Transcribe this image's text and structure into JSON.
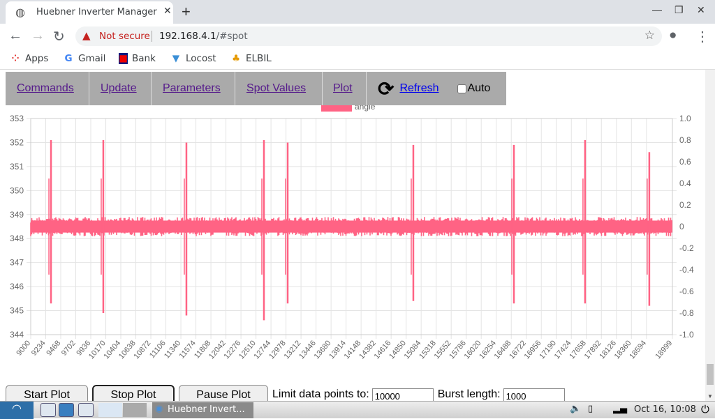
{
  "browser": {
    "tab_title": "Huebner Inverter Manager",
    "new_tab": "+",
    "security": "Not secure",
    "url_host": "192.168.4.1",
    "url_path": "/#spot",
    "bookmarks": [
      {
        "label": "Apps",
        "icon": "apps-grid-icon"
      },
      {
        "label": "Gmail",
        "icon": "google-icon"
      },
      {
        "label": "Bank",
        "icon": "bank-icon"
      },
      {
        "label": "Locost",
        "icon": "locost-icon"
      },
      {
        "label": "ELBIL",
        "icon": "elbil-icon"
      }
    ]
  },
  "menu": {
    "items": [
      "Commands",
      "Update",
      "Parameters",
      "Spot Values",
      "Plot"
    ],
    "refresh": "Refresh",
    "auto": "Auto",
    "auto_checked": false
  },
  "chart_data": {
    "type": "line",
    "legend": [
      {
        "name": "angle",
        "color": "#ff6384"
      }
    ],
    "legend_position": "top",
    "ylim_left": [
      344,
      353
    ],
    "yticks_left": [
      344,
      345,
      346,
      347,
      348,
      349,
      350,
      351,
      352,
      353
    ],
    "ylim_right": [
      -1.0,
      1.0
    ],
    "yticks_right": [
      "-1.0",
      "-0.8",
      "-0.6",
      "-0.4",
      "-0.2",
      "0",
      "0.2",
      "0.4",
      "0.6",
      "0.8",
      "1.0"
    ],
    "xlim": [
      9000,
      18999
    ],
    "xticks": [
      "9000",
      "9234",
      "9468",
      "9702",
      "9936",
      "10170",
      "10404",
      "10638",
      "10872",
      "11106",
      "11340",
      "11574",
      "11808",
      "12042",
      "12276",
      "12510",
      "12744",
      "12978",
      "13212",
      "13446",
      "13680",
      "13914",
      "14148",
      "14382",
      "14616",
      "14850",
      "15084",
      "15318",
      "15552",
      "15786",
      "16020",
      "16254",
      "16488",
      "16722",
      "16956",
      "17190",
      "17424",
      "17658",
      "17892",
      "18126",
      "18360",
      "18594",
      "18999"
    ],
    "grid": true,
    "series": [
      {
        "name": "angle",
        "baseline_range": [
          348.1,
          348.9
        ],
        "spikes": [
          {
            "x": 9316,
            "max": 352.1,
            "min": 345.3
          },
          {
            "x": 10131,
            "max": 352.1,
            "min": 344.9
          },
          {
            "x": 11426,
            "max": 352.0,
            "min": 344.8
          },
          {
            "x": 12634,
            "max": 352.1,
            "min": 344.6
          },
          {
            "x": 13004,
            "max": 352.0,
            "min": 345.3
          },
          {
            "x": 14962,
            "max": 351.9,
            "min": 345.4
          },
          {
            "x": 16529,
            "max": 351.9,
            "min": 345.3
          },
          {
            "x": 17638,
            "max": 352.1,
            "min": 345.3
          },
          {
            "x": 18639,
            "max": 351.6,
            "min": 345.2
          }
        ]
      }
    ]
  },
  "controls": {
    "start": "Start Plot",
    "stop": "Stop Plot",
    "pause": "Pause Plot",
    "limit_label": "Limit data points to:",
    "limit_value": "10000",
    "burst_label": "Burst length:",
    "burst_value": "1000"
  },
  "taskbar": {
    "task": "Huebner Invert...",
    "clock": "Oct 16, 10:08"
  }
}
